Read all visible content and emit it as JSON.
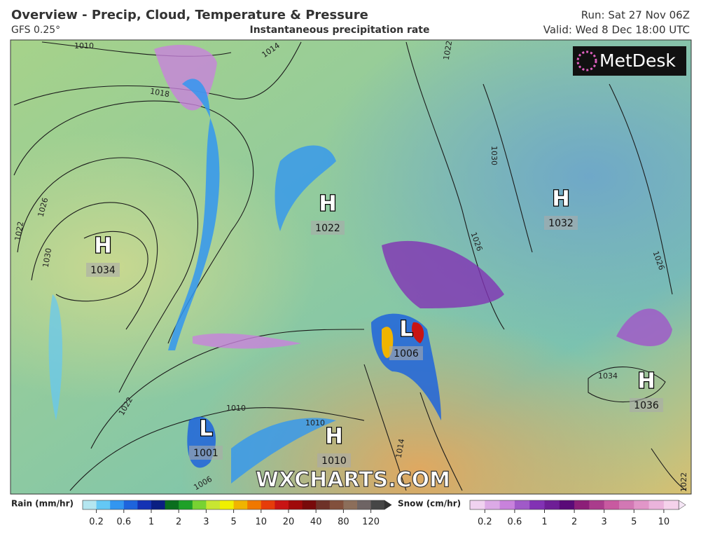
{
  "header": {
    "title": "Overview - Precip, Cloud, Temperature & Pressure",
    "model": "GFS 0.25°",
    "layer": "Instantaneous precipitation rate",
    "run": "Run: Sat 27 Nov 06Z",
    "valid": "Valid: Wed 8 Dec 18:00 UTC"
  },
  "logo": "MetDesk",
  "watermark": "WXCHARTS.COM",
  "pressure_centers": [
    {
      "type": "H",
      "value": "1034"
    },
    {
      "type": "H",
      "value": "1022"
    },
    {
      "type": "H",
      "value": "1032"
    },
    {
      "type": "L",
      "value": "1006"
    },
    {
      "type": "H",
      "value": "1036"
    },
    {
      "type": "L",
      "value": "1001"
    },
    {
      "type": "H",
      "value": "1010"
    }
  ],
  "isobar_labels": [
    "1010",
    "1014",
    "1018",
    "1022",
    "1026",
    "1022",
    "1030",
    "1030",
    "1026",
    "1026",
    "1010",
    "1010",
    "1006",
    "1014",
    "1022",
    "1034",
    "1022"
  ],
  "legend": {
    "rain": {
      "label": "Rain (mm/hr)",
      "ticks": [
        "0.2",
        "0.6",
        "1",
        "2",
        "3",
        "5",
        "10",
        "20",
        "40",
        "80",
        "120"
      ],
      "colors": [
        "#b4e6f0",
        "#64c8f5",
        "#3296f0",
        "#1e64dc",
        "#1432b4",
        "#0a1e82",
        "#0a6e1e",
        "#1ea028",
        "#78d232",
        "#c8e632",
        "#f0f000",
        "#f0b400",
        "#f07800",
        "#e63c0a",
        "#c81414",
        "#a00a0a",
        "#780a0a",
        "#6e3228",
        "#82503c",
        "#8c6e5a",
        "#6e6464",
        "#464646"
      ]
    },
    "snow": {
      "label": "Snow (cm/hr)",
      "ticks": [
        "0.2",
        "0.6",
        "1",
        "2",
        "3",
        "5",
        "10"
      ],
      "colors": [
        "#f0d2f0",
        "#dcaae6",
        "#c882dc",
        "#a05ac8",
        "#8232b4",
        "#6e1e96",
        "#5a0a78",
        "#8c1e78",
        "#aa3c8c",
        "#c85aa0",
        "#d278b4",
        "#e196c8",
        "#ebb4dc",
        "#f5d2eb"
      ]
    }
  }
}
